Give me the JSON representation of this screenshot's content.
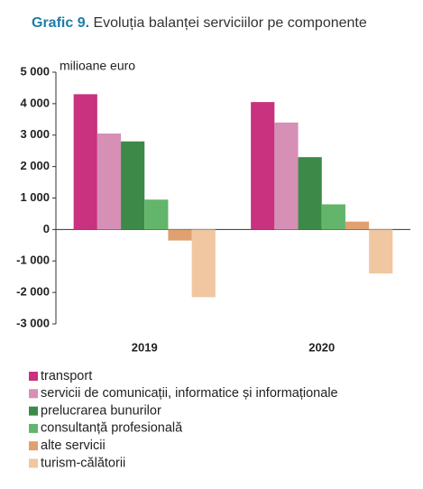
{
  "chart_data": {
    "type": "bar",
    "title_label": "Grafic 9.",
    "title": "Evoluția balanței serviciilor pe componente",
    "ylabel": "milioane euro",
    "categories": [
      "2019",
      "2020"
    ],
    "series": [
      {
        "name": "transport",
        "color": "#c8327f",
        "values": [
          4300,
          4050
        ]
      },
      {
        "name": "servicii de comunicații, informatice și informaționale",
        "color": "#d68fb5",
        "values": [
          3050,
          3400
        ]
      },
      {
        "name": "prelucrarea bunurilor",
        "color": "#3d8a48",
        "values": [
          2800,
          2300
        ]
      },
      {
        "name": "consultanță profesională",
        "color": "#62b56b",
        "values": [
          950,
          800
        ]
      },
      {
        "name": "alte servicii",
        "color": "#e0a070",
        "values": [
          -350,
          250
        ]
      },
      {
        "name": "turism-călătorii",
        "color": "#f0c7a0",
        "values": [
          -2150,
          -1400
        ]
      }
    ],
    "ylim": [
      -3000,
      5000
    ],
    "yticks": [
      {
        "value": -3000,
        "label": "-3 000"
      },
      {
        "value": -2000,
        "label": "-2 000"
      },
      {
        "value": -1000,
        "label": "-1 000"
      },
      0,
      {
        "value": 1000,
        "label": "1 000"
      },
      {
        "value": 2000,
        "label": "2 000"
      },
      {
        "value": 3000,
        "label": "3 000"
      },
      {
        "value": 4000,
        "label": "4 000"
      },
      {
        "value": 5000,
        "label": "5 000"
      }
    ],
    "grid": false
  }
}
